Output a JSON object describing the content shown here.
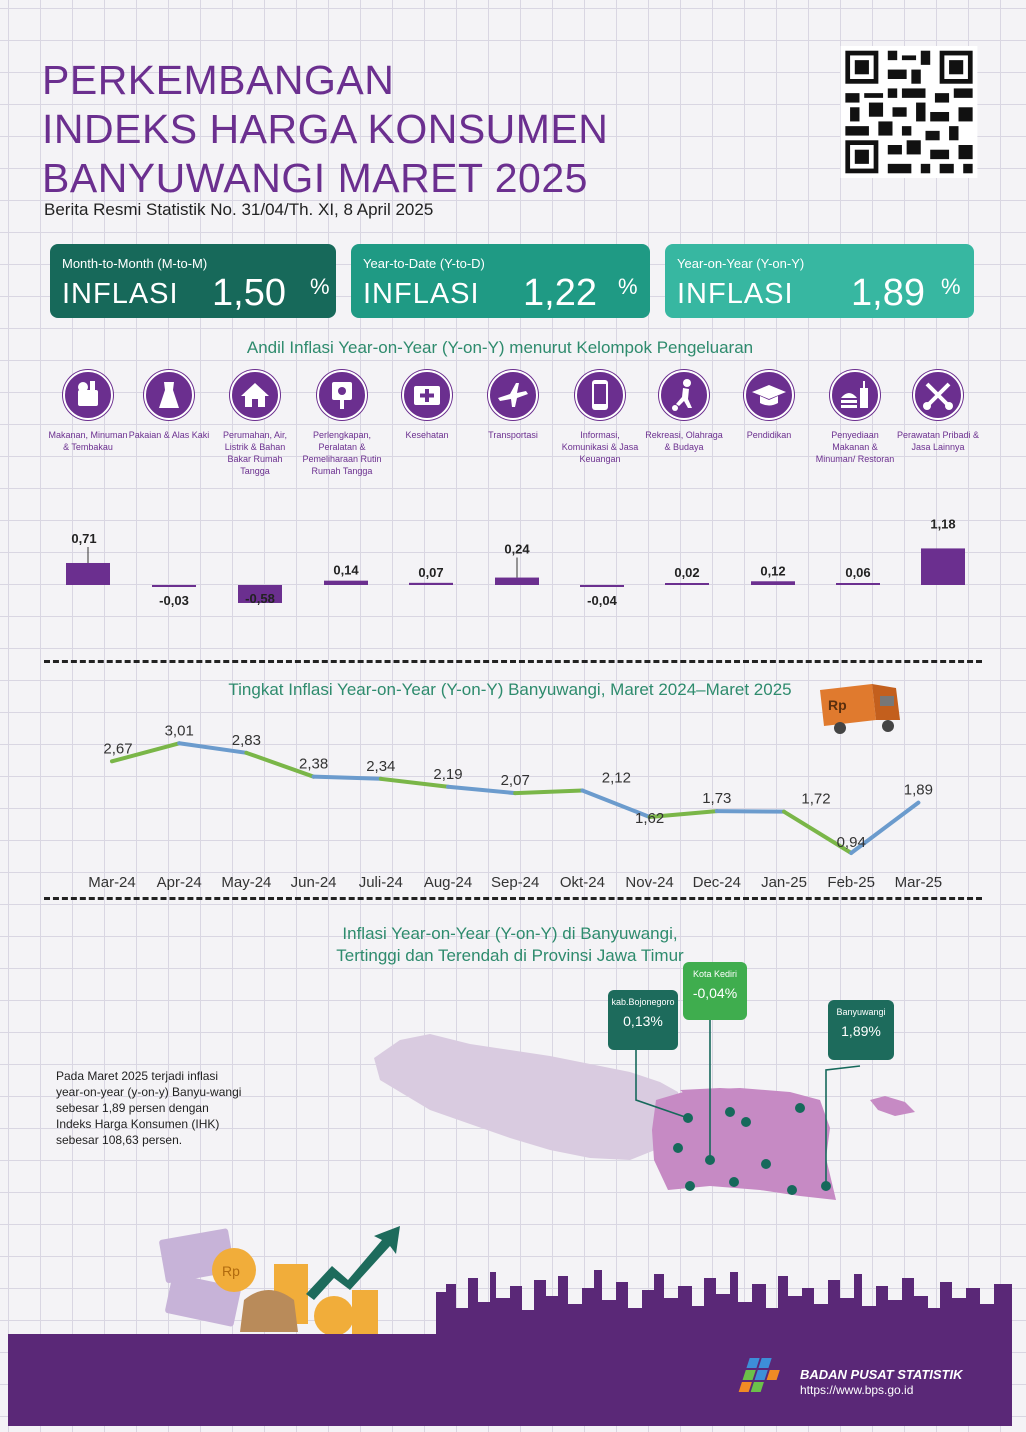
{
  "header": {
    "title_lines": [
      "PERKEMBANGAN",
      "INDEKS HARGA KONSUMEN",
      "BANYUWANGI MARET 2025"
    ],
    "subtitle": "Berita Resmi Statistik No. 31/04/Th. XI, 8 April 2025"
  },
  "cards": [
    {
      "label": "Month-to-Month (M-to-M)",
      "word": "INFLASI",
      "value": "1,50",
      "unit": "%",
      "color": "#17695a"
    },
    {
      "label": "Year-to-Date (Y-to-D)",
      "word": "INFLASI",
      "value": "1,22",
      "unit": "%",
      "color": "#1f9a84"
    },
    {
      "label": "Year-on-Year (Y-on-Y)",
      "word": "INFLASI",
      "value": "1,89",
      "unit": "%",
      "color": "#37b7a1"
    }
  ],
  "andil_title": "Andil Inflasi Year-on-Year (Y-on-Y) menurut Kelompok Pengeluaran",
  "trend_title": "Tingkat Inflasi Year-on-Year (Y-on-Y) Banyuwangi, Maret 2024–Maret 2025",
  "map": {
    "title_line1": "Inflasi Year-on-Year (Y-on-Y) di Banyuwangi,",
    "title_line2": "Tertinggi dan Terendah di Provinsi Jawa Timur",
    "callouts": [
      {
        "name": "kab.Bojonegoro",
        "value": "0,13%"
      },
      {
        "name": "Kota Kediri",
        "value": "-0,04%"
      },
      {
        "name": "Banyuwangi",
        "value": "1,89%"
      }
    ]
  },
  "body_text": "Pada Maret 2025 terjadi inflasi year-on-year (y-on-y) Banyu-wangi sebesar 1,89 persen dengan Indeks Harga Konsumen (IHK) sebesar 108,63 persen.",
  "footer": {
    "org": "BADAN PUSAT STATISTIK",
    "url": "https://www.bps.go.id"
  },
  "icons": [
    "qr-code-icon",
    "food-basket-icon",
    "dress-icon",
    "house-icon",
    "power-plug-icon",
    "medical-kit-icon",
    "airplane-icon",
    "smartphone-icon",
    "soccer-player-icon",
    "graduation-cap-icon",
    "burger-drink-icon",
    "scissors-comb-icon",
    "delivery-truck-icon",
    "money-stack-icon",
    "growth-arrow-icon",
    "bps-logo-icon"
  ],
  "chart_data": [
    {
      "type": "bar",
      "categories": [
        "Makanan, Minuman & Tembakau",
        "Pakaian & Alas Kaki",
        "Perumahan, Air, Listrik & Bahan Bakar Rumah Tangga",
        "Perlengkapan, Peralatan & Pemeliharaan Rutin Rumah Tangga",
        "Kesehatan",
        "Transportasi",
        "Informasi, Komunikasi & Jasa Keuangan",
        "Rekreasi, Olahraga & Budaya",
        "Pendidikan",
        "Penyediaan Makanan & Minuman/ Restoran",
        "Perawatan Pribadi & Jasa Lainnya"
      ],
      "values": [
        0.71,
        -0.03,
        -0.58,
        0.14,
        0.07,
        0.24,
        -0.04,
        0.02,
        0.12,
        0.06,
        1.18
      ],
      "value_labels": [
        "0,71",
        "-0,03",
        "-0,58",
        "0,14",
        "0,07",
        "0,24",
        "-0,04",
        "0,02",
        "0,12",
        "0,06",
        "1,18"
      ],
      "bar_color": "#6b2f8f"
    },
    {
      "type": "line",
      "x": [
        "Mar-24",
        "Apr-24",
        "May-24",
        "Jun-24",
        "Juli-24",
        "Aug-24",
        "Sep-24",
        "Okt-24",
        "Nov-24",
        "Dec-24",
        "Jan-25",
        "Feb-25",
        "Mar-25"
      ],
      "y": [
        2.67,
        3.01,
        2.83,
        2.38,
        2.34,
        2.19,
        2.07,
        2.12,
        1.62,
        1.73,
        1.72,
        0.94,
        1.89
      ],
      "y_labels": [
        "2,67",
        "3,01",
        "2,83",
        "2,38",
        "2,34",
        "2,19",
        "2,07",
        "2,12",
        "1,62",
        "1,73",
        "1,72",
        "0,94",
        "1,89"
      ],
      "colors": {
        "up": "#6b9bcd",
        "down": "#7ab648"
      }
    }
  ]
}
